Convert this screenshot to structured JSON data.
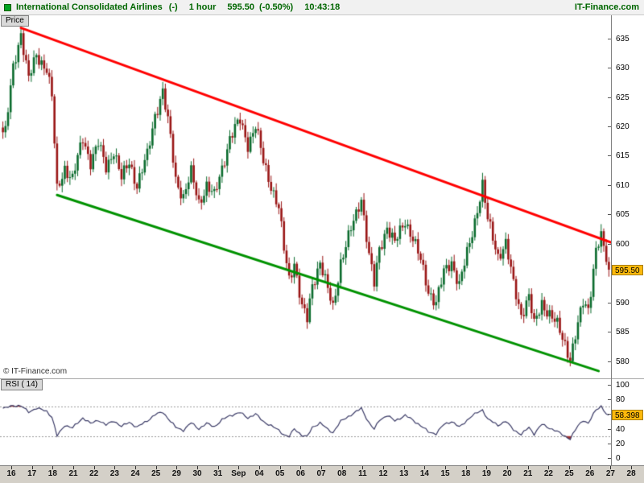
{
  "titlebar": {
    "icon_color": "#00a321",
    "text_color": "#006600",
    "instrument": "International Consolidated Airlines",
    "flag": "(-)",
    "timeframe": "1 hour",
    "price": "595.50",
    "change": "(-0.50%)",
    "time": "10:43:18",
    "brand": "IT-Finance.com"
  },
  "price_panel": {
    "tab_label": "Price",
    "watermark": "© IT-Finance.com",
    "axis_ticks": [
      635,
      630,
      625,
      620,
      615,
      610,
      605,
      600,
      590,
      585,
      580
    ],
    "last_price_label": "595.50",
    "tag_color": "#fdb90c"
  },
  "rsi_panel": {
    "label": "RSI ( 14)",
    "axis_ticks": [
      100,
      80,
      60,
      40,
      20,
      0
    ],
    "last_value_label": "58.398",
    "tag_color": "#fdb90c"
  },
  "x_axis": {
    "labels": [
      "16",
      "17",
      "18",
      "21",
      "22",
      "23",
      "24",
      "25",
      "29",
      "30",
      "31",
      "Sep",
      "04",
      "05",
      "06",
      "07",
      "08",
      "11",
      "12",
      "13",
      "14",
      "15",
      "18",
      "19",
      "20",
      "21",
      "22",
      "25",
      "26",
      "27",
      "28"
    ]
  },
  "chart_data": [
    {
      "type": "candlestick",
      "panel": "price",
      "title": "International Consolidated Airlines, 1 hour",
      "ylim": [
        578.7,
        638.8
      ],
      "total_bars": 236,
      "up_color": "#0a6b2d",
      "down_color": "#991414",
      "last_price": 595.5,
      "close_anchors": [
        [
          1,
          619
        ],
        [
          4,
          630
        ],
        [
          7,
          636
        ],
        [
          10,
          628
        ],
        [
          13,
          632
        ],
        [
          17,
          630
        ],
        [
          19,
          625
        ],
        [
          21,
          609
        ],
        [
          24,
          613
        ],
        [
          27,
          611
        ],
        [
          31,
          618
        ],
        [
          34,
          614
        ],
        [
          37,
          617
        ],
        [
          40,
          613
        ],
        [
          43,
          616
        ],
        [
          46,
          611
        ],
        [
          49,
          614
        ],
        [
          52,
          610
        ],
        [
          56,
          615
        ],
        [
          59,
          622
        ],
        [
          62,
          626
        ],
        [
          65,
          618
        ],
        [
          67,
          611
        ],
        [
          70,
          608
        ],
        [
          73,
          612
        ],
        [
          76,
          607
        ],
        [
          79,
          610
        ],
        [
          82,
          608
        ],
        [
          85,
          613
        ],
        [
          88,
          618
        ],
        [
          92,
          621
        ],
        [
          95,
          617
        ],
        [
          98,
          620
        ],
        [
          101,
          614
        ],
        [
          104,
          610
        ],
        [
          107,
          606
        ],
        [
          109,
          599
        ],
        [
          111,
          594
        ],
        [
          113,
          597
        ],
        [
          116,
          589
        ],
        [
          118,
          587
        ],
        [
          120,
          593
        ],
        [
          123,
          597
        ],
        [
          126,
          592
        ],
        [
          128,
          589
        ],
        [
          131,
          597
        ],
        [
          134,
          601
        ],
        [
          137,
          605
        ],
        [
          139,
          608
        ],
        [
          142,
          598
        ],
        [
          144,
          593
        ],
        [
          146,
          599
        ],
        [
          149,
          603
        ],
        [
          152,
          600
        ],
        [
          156,
          604
        ],
        [
          159,
          601
        ],
        [
          162,
          597
        ],
        [
          165,
          592
        ],
        [
          168,
          590
        ],
        [
          171,
          595
        ],
        [
          174,
          597
        ],
        [
          177,
          593
        ],
        [
          181,
          600
        ],
        [
          184,
          606
        ],
        [
          186,
          610
        ],
        [
          188,
          604
        ],
        [
          192,
          598
        ],
        [
          195,
          600
        ],
        [
          198,
          593
        ],
        [
          201,
          588
        ],
        [
          204,
          591
        ],
        [
          206,
          586
        ],
        [
          209,
          590
        ],
        [
          212,
          588
        ],
        [
          215,
          586
        ],
        [
          218,
          583
        ],
        [
          220,
          580.5
        ],
        [
          223,
          586
        ],
        [
          225,
          590
        ],
        [
          227,
          589
        ],
        [
          230,
          599
        ],
        [
          232,
          601
        ],
        [
          234,
          597
        ],
        [
          235,
          595.5
        ]
      ],
      "trendlines": [
        {
          "name": "descending-resistance",
          "color": "#ff0000",
          "width": 3,
          "from": [
            7,
            636.8
          ],
          "to": [
            236,
            600.2
          ]
        },
        {
          "name": "descending-support",
          "color": "#009200",
          "width": 3,
          "from": [
            21,
            608.3
          ],
          "to": [
            231,
            578.3
          ]
        }
      ]
    },
    {
      "type": "line",
      "panel": "rsi",
      "name": "RSI (14)",
      "ylim": [
        0,
        100
      ],
      "line_color": "#3a3a66",
      "overbought_level": 70,
      "oversold_level": 30,
      "zone_fill_color": "#a03434",
      "last_value": 58.398,
      "anchors": [
        [
          1,
          68
        ],
        [
          4,
          72
        ],
        [
          7,
          71
        ],
        [
          10,
          63
        ],
        [
          13,
          68
        ],
        [
          17,
          64
        ],
        [
          19,
          56
        ],
        [
          21,
          30
        ],
        [
          24,
          45
        ],
        [
          27,
          41
        ],
        [
          31,
          55
        ],
        [
          34,
          47
        ],
        [
          37,
          52
        ],
        [
          40,
          45
        ],
        [
          43,
          51
        ],
        [
          46,
          43
        ],
        [
          49,
          49
        ],
        [
          52,
          42
        ],
        [
          56,
          51
        ],
        [
          59,
          59
        ],
        [
          62,
          63
        ],
        [
          65,
          50
        ],
        [
          67,
          42
        ],
        [
          70,
          38
        ],
        [
          73,
          48
        ],
        [
          76,
          40
        ],
        [
          79,
          47
        ],
        [
          82,
          43
        ],
        [
          85,
          52
        ],
        [
          88,
          58
        ],
        [
          92,
          62
        ],
        [
          95,
          55
        ],
        [
          98,
          60
        ],
        [
          101,
          50
        ],
        [
          104,
          44
        ],
        [
          107,
          38
        ],
        [
          109,
          32
        ],
        [
          111,
          29
        ],
        [
          113,
          40
        ],
        [
          116,
          31
        ],
        [
          118,
          29
        ],
        [
          120,
          42
        ],
        [
          123,
          48
        ],
        [
          126,
          39
        ],
        [
          128,
          35
        ],
        [
          131,
          50
        ],
        [
          134,
          57
        ],
        [
          137,
          63
        ],
        [
          139,
          68
        ],
        [
          142,
          48
        ],
        [
          144,
          39
        ],
        [
          146,
          52
        ],
        [
          149,
          58
        ],
        [
          152,
          51
        ],
        [
          156,
          58
        ],
        [
          159,
          52
        ],
        [
          162,
          44
        ],
        [
          165,
          36
        ],
        [
          168,
          33
        ],
        [
          171,
          46
        ],
        [
          174,
          50
        ],
        [
          177,
          42
        ],
        [
          181,
          55
        ],
        [
          184,
          62
        ],
        [
          186,
          66
        ],
        [
          188,
          53
        ],
        [
          192,
          45
        ],
        [
          195,
          50
        ],
        [
          198,
          39
        ],
        [
          201,
          32
        ],
        [
          204,
          42
        ],
        [
          206,
          33
        ],
        [
          209,
          46
        ],
        [
          212,
          41
        ],
        [
          215,
          36
        ],
        [
          218,
          30
        ],
        [
          220,
          26
        ],
        [
          223,
          44
        ],
        [
          225,
          52
        ],
        [
          227,
          47
        ],
        [
          230,
          66
        ],
        [
          232,
          71
        ],
        [
          234,
          60
        ],
        [
          235,
          58.398
        ]
      ]
    }
  ]
}
